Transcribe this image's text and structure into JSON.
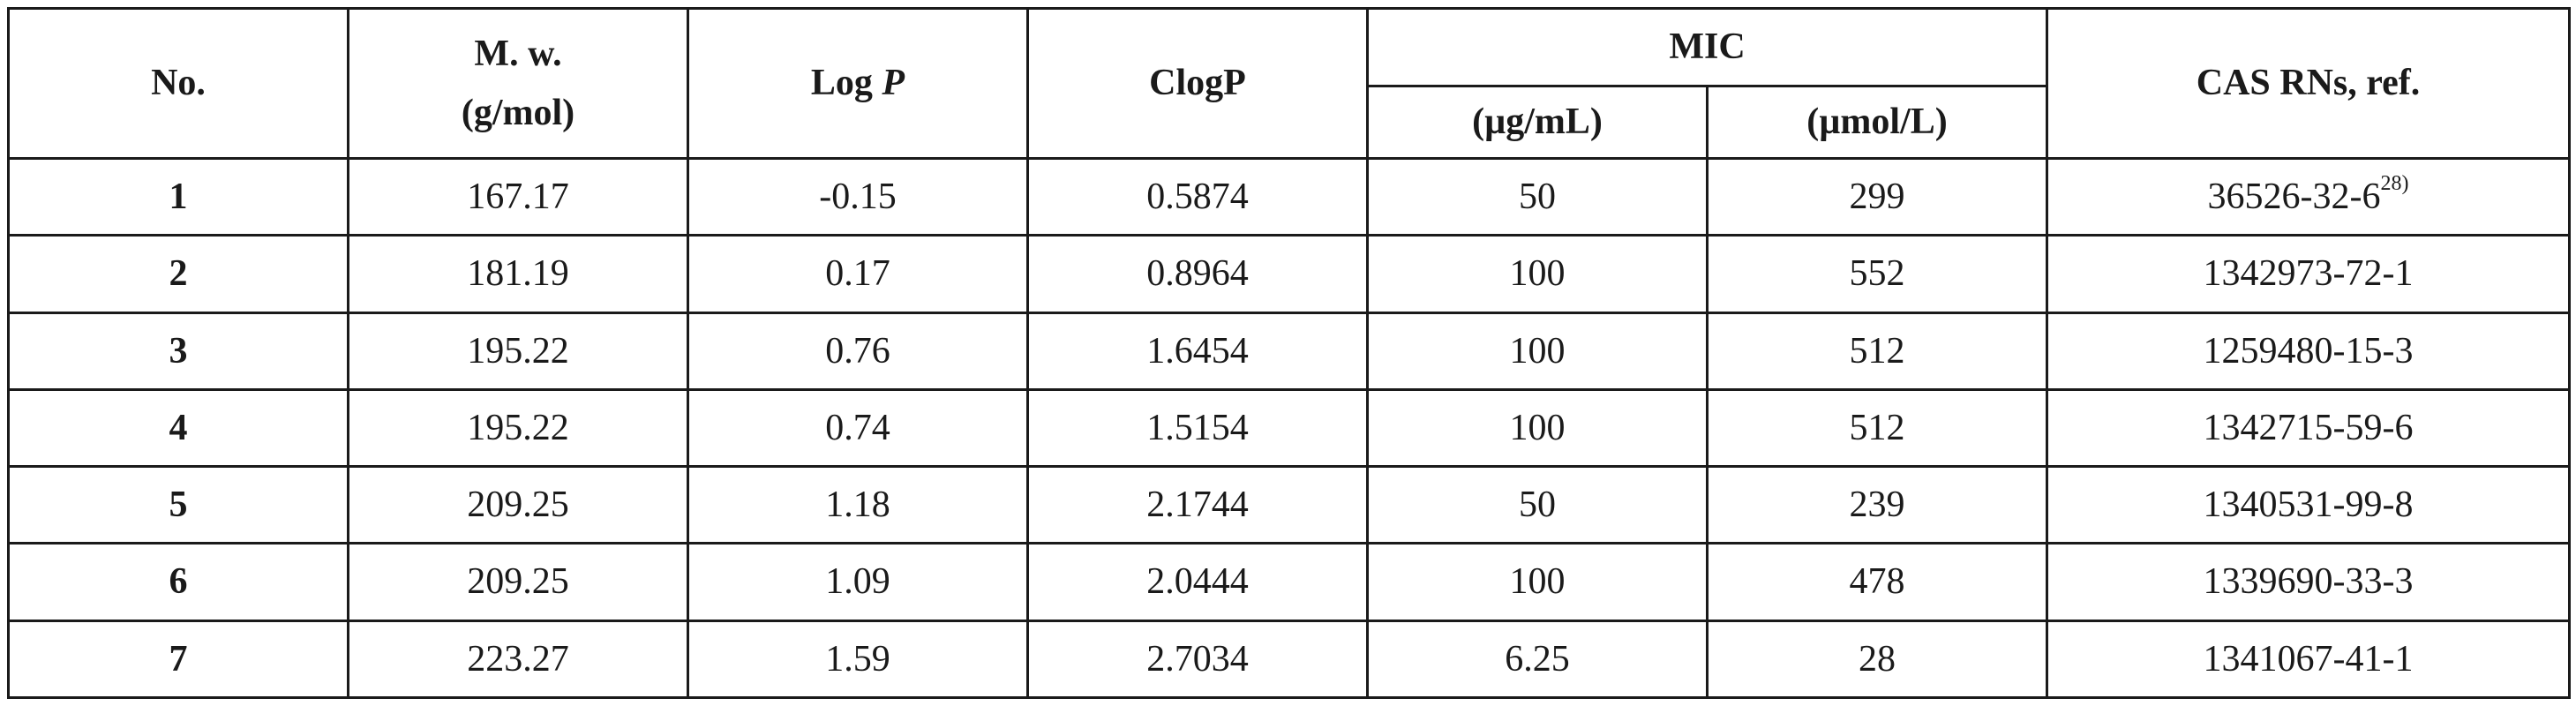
{
  "table": {
    "headers": {
      "no": "No.",
      "mw_line1": "M. w.",
      "mw_line2": "(g/mol)",
      "logp_prefix": "Log",
      "logp_var": "P",
      "clogp": "ClogP",
      "mic": "MIC",
      "mic_ugml": "(µg/mL)",
      "mic_umoll": "(µmol/L)",
      "cas": "CAS RNs, ref."
    },
    "rows": [
      {
        "no": "1",
        "mw": "167.17",
        "logp": "-0.15",
        "clogp": "0.5874",
        "mic_ugml": "50",
        "mic_umoll": "299",
        "cas": "36526-32-6",
        "ref": "28)"
      },
      {
        "no": "2",
        "mw": "181.19",
        "logp": "0.17",
        "clogp": "0.8964",
        "mic_ugml": "100",
        "mic_umoll": "552",
        "cas": "1342973-72-1",
        "ref": ""
      },
      {
        "no": "3",
        "mw": "195.22",
        "logp": "0.76",
        "clogp": "1.6454",
        "mic_ugml": "100",
        "mic_umoll": "512",
        "cas": "1259480-15-3",
        "ref": ""
      },
      {
        "no": "4",
        "mw": "195.22",
        "logp": "0.74",
        "clogp": "1.5154",
        "mic_ugml": "100",
        "mic_umoll": "512",
        "cas": "1342715-59-6",
        "ref": ""
      },
      {
        "no": "5",
        "mw": "209.25",
        "logp": "1.18",
        "clogp": "2.1744",
        "mic_ugml": "50",
        "mic_umoll": "239",
        "cas": "1340531-99-8",
        "ref": ""
      },
      {
        "no": "6",
        "mw": "209.25",
        "logp": "1.09",
        "clogp": "2.0444",
        "mic_ugml": "100",
        "mic_umoll": "478",
        "cas": "1339690-33-3",
        "ref": ""
      },
      {
        "no": "7",
        "mw": "223.27",
        "logp": "1.59",
        "clogp": "2.7034",
        "mic_ugml": "6.25",
        "mic_umoll": "28",
        "cas": "1341067-41-1",
        "ref": ""
      }
    ]
  }
}
